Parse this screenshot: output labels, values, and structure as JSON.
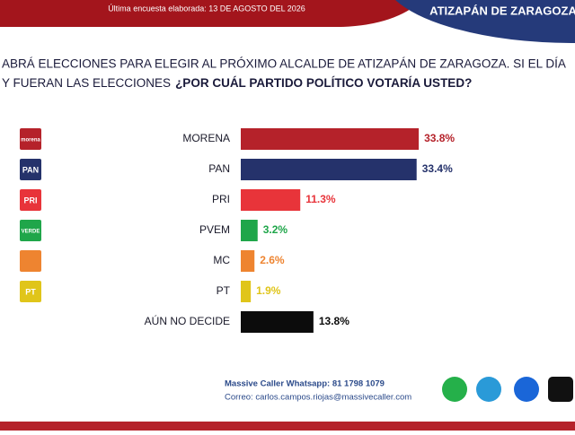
{
  "header": {
    "survey_date": "Última encuesta elaborada: 13 DE AGOSTO DEL 2026",
    "region": "ATIZAPÁN DE ZARAGOZA"
  },
  "question": {
    "line1": "ABRÁ ELECCIONES PARA ELEGIR AL PRÓXIMO ALCALDE DE ATIZAPÁN DE ZARAGOZA. SI EL DÍA",
    "line2": "Y FUERAN LAS ELECCIONES",
    "emphasis": "¿POR CUÁL PARTIDO POLÍTICO VOTARÍA USTED?"
  },
  "chart_data": {
    "type": "hbar",
    "categories": [
      "MORENA",
      "PAN",
      "PRI",
      "PVEM",
      "MC",
      "PT",
      "AÚN NO DECIDE"
    ],
    "values": [
      33.8,
      33.4,
      11.3,
      3.2,
      2.6,
      1.9,
      13.8
    ],
    "value_labels": [
      "33.8%",
      "33.4%",
      "11.3%",
      "3.2%",
      "2.6%",
      "1.9%",
      "13.8%"
    ],
    "colors": [
      "#b5222a",
      "#25326b",
      "#e8343a",
      "#1fa64a",
      "#ee8430",
      "#e0c51a",
      "#0c0c0c"
    ],
    "logo_labels": [
      "morena",
      "PAN",
      "PRI",
      "VERDE",
      null,
      "PT",
      null
    ]
  },
  "footer": {
    "whatsapp": "Massive Caller Whatsapp: 81 1798 1079",
    "email": "Correo: carlos.campos.riojas@massivecaller.com"
  }
}
